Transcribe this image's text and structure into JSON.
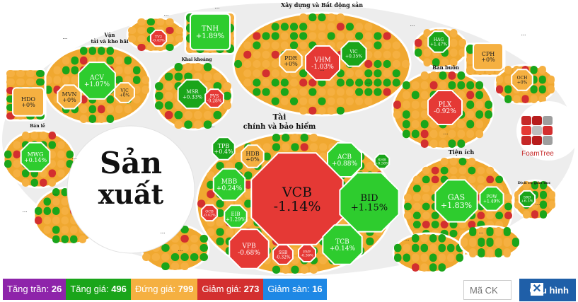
{
  "groups": [
    {
      "key": "xaydung",
      "label": "Xây dựng và Bất động sản"
    },
    {
      "key": "vantai1",
      "label": "Vận"
    },
    {
      "key": "vantai2",
      "label": "tải và kho bãi"
    },
    {
      "key": "khaikhoang",
      "label": "Khai khoáng"
    },
    {
      "key": "banbuon",
      "label": "Bán buôn"
    },
    {
      "key": "banle",
      "label": "Bán lẻ"
    },
    {
      "key": "taichinh1",
      "label": "Tài"
    },
    {
      "key": "taichinh2",
      "label": "chính và bảo hiểm"
    },
    {
      "key": "tienich",
      "label": "Tiện ích"
    },
    {
      "key": "dichvu",
      "label": "Dịch vụ giáo dục"
    },
    {
      "key": "sanxuat1",
      "label": "Sản"
    },
    {
      "key": "sanxuat2",
      "label": "xuất"
    }
  ],
  "stocks": [
    {
      "code": "TNH",
      "change": "+1.89%",
      "status": "up"
    },
    {
      "code": "TV2",
      "change": "-0.43%",
      "status": "down"
    },
    {
      "code": "ACV",
      "change": "+1.07%",
      "status": "up"
    },
    {
      "code": "MVN",
      "change": "+0%",
      "status": "flat"
    },
    {
      "code": "VJC",
      "change": "+0%",
      "status": "flat"
    },
    {
      "code": "HDO",
      "change": "+0%",
      "status": "flat"
    },
    {
      "code": "MSR",
      "change": "+0.33%",
      "status": "up"
    },
    {
      "code": "PVS",
      "change": "-0.28%",
      "status": "down"
    },
    {
      "code": "PDR",
      "change": "+0%",
      "status": "flat"
    },
    {
      "code": "VHM",
      "change": "-1.03%",
      "status": "down"
    },
    {
      "code": "VIC",
      "change": "+0.35%",
      "status": "up"
    },
    {
      "code": "HAG",
      "change": "+1.47%",
      "status": "up"
    },
    {
      "code": "CPH",
      "change": "+0%",
      "status": "flat"
    },
    {
      "code": "OCH",
      "change": "+0%",
      "status": "flat"
    },
    {
      "code": "PLX",
      "change": "-0.92%",
      "status": "down"
    },
    {
      "code": "MWG",
      "change": "+0.14%",
      "status": "up"
    },
    {
      "code": "TPB",
      "change": "+0.4%",
      "status": "up"
    },
    {
      "code": "HDB",
      "change": "+0%",
      "status": "flat"
    },
    {
      "code": "ACB",
      "change": "+0.88%",
      "status": "up"
    },
    {
      "code": "SHB",
      "change": "+0.38%",
      "status": "up"
    },
    {
      "code": "MBB",
      "change": "+0.24%",
      "status": "up"
    },
    {
      "code": "VCB",
      "change": "-1.14%",
      "status": "down"
    },
    {
      "code": "BID",
      "change": "+1.15%",
      "status": "up"
    },
    {
      "code": "OCB",
      "change": "-0.42%",
      "status": "down"
    },
    {
      "code": "EIB",
      "change": "+1.29%",
      "status": "up"
    },
    {
      "code": "VPB",
      "change": "-0.68%",
      "status": "down"
    },
    {
      "code": "SSB",
      "change": "-0.32%",
      "status": "down"
    },
    {
      "code": "EVF",
      "change": "-0.36%",
      "status": "down"
    },
    {
      "code": "TCB",
      "change": "+0.14%",
      "status": "up"
    },
    {
      "code": "GAS",
      "change": "+1.83%",
      "status": "up"
    },
    {
      "code": "POW",
      "change": "+1.49%",
      "status": "up"
    },
    {
      "code": "SRB",
      "change": "+6.3%",
      "status": "up"
    }
  ],
  "ellipsis": "...",
  "logo_text": "FoamTree",
  "colors": {
    "ceil": "#8e24aa",
    "up": "#1aa51a",
    "flat": "#f5b041",
    "down": "#d32f2f",
    "floor": "#1e88e5",
    "brightgreen": "#2ecc2e",
    "brightred": "#e53935"
  },
  "legend": [
    {
      "key": "ceil",
      "label": "Tăng trần:",
      "value": "26"
    },
    {
      "key": "up",
      "label": "Tăng giá:",
      "value": "496"
    },
    {
      "key": "flat",
      "label": "Đứng giá:",
      "value": "799"
    },
    {
      "key": "down",
      "label": "Giảm giá:",
      "value": "273"
    },
    {
      "key": "floor",
      "label": "Giảm sàn:",
      "value": "16"
    }
  ],
  "search": {
    "placeholder": "Mã CK"
  },
  "config_button": {
    "label": "Cấu hình",
    "icon": "close-icon"
  }
}
